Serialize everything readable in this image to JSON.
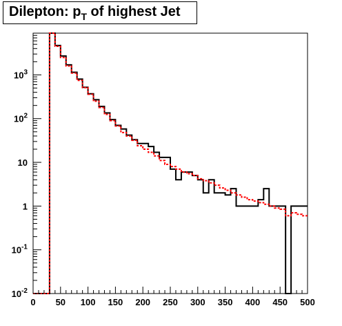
{
  "title": {
    "prefix": "Dilepton: p",
    "subscript": "T",
    "suffix": " of highest Jet"
  },
  "chart_data": {
    "type": "histogram",
    "title": "Dilepton: pT of highest Jet",
    "xlabel": "",
    "ylabel": "",
    "xlim": [
      0,
      500
    ],
    "ylim": [
      0.01,
      9000
    ],
    "yscale": "log",
    "grid": false,
    "legend": "none",
    "bin_width": 10,
    "x_ticks": [
      "0",
      "50",
      "100",
      "150",
      "200",
      "250",
      "300",
      "350",
      "400",
      "450",
      "500"
    ],
    "y_ticks": [
      {
        "base": "10",
        "exp": "-2"
      },
      {
        "base": "10",
        "exp": "-1"
      },
      {
        "base": "1",
        "exp": ""
      },
      {
        "base": "10",
        "exp": ""
      },
      {
        "base": "10",
        "exp": "2"
      },
      {
        "base": "10",
        "exp": "3"
      }
    ],
    "series": [
      {
        "color": "#000000",
        "style": "solid-step",
        "values": [
          0.01,
          0.01,
          0.01,
          9000,
          4700,
          2700,
          1700,
          1150,
          800,
          520,
          370,
          270,
          190,
          135,
          95,
          70,
          58,
          42,
          33,
          27,
          27,
          23,
          17,
          13,
          13,
          7,
          4,
          6,
          6,
          5,
          4,
          2,
          4,
          2,
          2,
          1.8,
          2.5,
          1,
          1,
          1,
          1,
          1.4,
          2.5,
          1,
          1,
          1.0,
          0.01,
          1.0,
          1.0,
          1.0
        ]
      },
      {
        "color": "#ff0000",
        "style": "dashed-step",
        "values": [
          0.01,
          0.01,
          0.01,
          9000,
          4500,
          2500,
          1600,
          1100,
          750,
          510,
          360,
          250,
          180,
          125,
          90,
          68,
          48,
          40,
          32,
          24,
          20,
          17,
          14,
          11,
          9,
          8,
          7,
          6,
          5.5,
          5,
          4.2,
          3.8,
          3.4,
          3.0,
          2.6,
          2.3,
          2.0,
          1.8,
          1.6,
          1.4,
          1.3,
          1.2,
          1.1,
          1.0,
          0.9,
          0.85,
          0.6,
          0.7,
          0.65,
          0.6
        ]
      }
    ]
  }
}
